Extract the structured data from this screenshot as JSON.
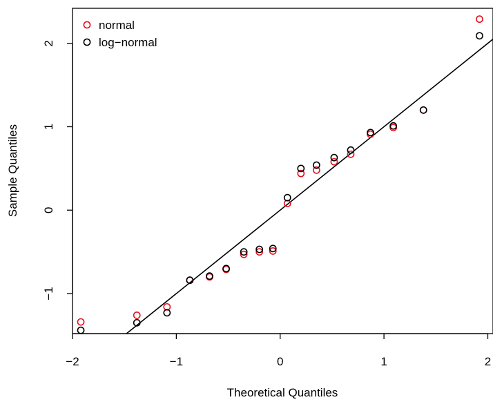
{
  "chart_data": {
    "type": "scatter",
    "title": "",
    "xlabel": "Theoretical Quantiles",
    "ylabel": "Sample Quantiles",
    "xlim": [
      -2.0,
      2.05
    ],
    "ylim": [
      -1.48,
      2.42
    ],
    "x_ticks": [
      -2,
      -1,
      0,
      1,
      2
    ],
    "x_tick_labels": [
      "−2",
      "−1",
      "0",
      "1",
      "2"
    ],
    "y_ticks": [
      -1,
      0,
      1,
      2
    ],
    "y_tick_labels": [
      "−1",
      "0",
      "1",
      "2"
    ],
    "grid": false,
    "legend": {
      "position": "top-left",
      "entries": [
        {
          "label": "normal",
          "color": "#e8101e"
        },
        {
          "label": "log−normal",
          "color": "#000000"
        }
      ]
    },
    "series": [
      {
        "name": "normal",
        "color": "#e8101e",
        "marker": "open-circle",
        "x": [
          -1.92,
          -1.38,
          -1.09,
          -0.87,
          -0.68,
          -0.52,
          -0.35,
          -0.2,
          -0.07,
          0.07,
          0.2,
          0.35,
          0.52,
          0.68,
          0.87,
          1.09,
          1.38,
          1.92
        ],
        "y": [
          -1.34,
          -1.26,
          -1.16,
          -0.84,
          -0.8,
          -0.71,
          -0.53,
          -0.5,
          -0.49,
          0.08,
          0.44,
          0.48,
          0.58,
          0.67,
          0.91,
          0.99,
          1.2,
          2.29
        ]
      },
      {
        "name": "log−normal",
        "color": "#000000",
        "marker": "open-circle",
        "x": [
          -1.92,
          -1.38,
          -1.09,
          -0.87,
          -0.68,
          -0.52,
          -0.35,
          -0.2,
          -0.07,
          0.07,
          0.2,
          0.35,
          0.52,
          0.68,
          0.87,
          1.09,
          1.38,
          1.92
        ],
        "y": [
          -1.44,
          -1.35,
          -1.23,
          -0.84,
          -0.79,
          -0.7,
          -0.5,
          -0.47,
          -0.46,
          0.15,
          0.5,
          0.54,
          0.63,
          0.72,
          0.93,
          1.01,
          1.2,
          2.09
        ]
      }
    ],
    "reference_line": {
      "description": "qqline",
      "color": "#000000",
      "points": [
        [
          -1.48,
          -1.48
        ],
        [
          2.05,
          2.05
        ]
      ]
    }
  }
}
